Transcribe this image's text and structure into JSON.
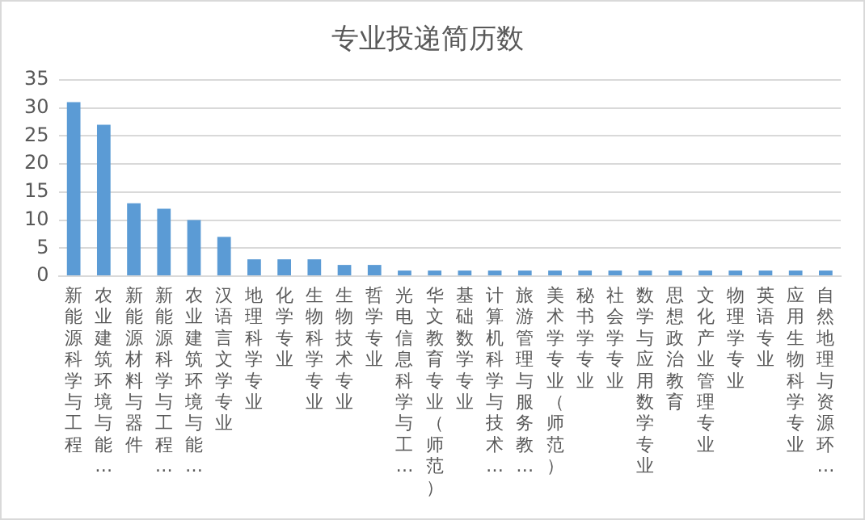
{
  "chart_data": {
    "type": "bar",
    "title": "专业投递简历数",
    "categories": [
      "新能源科学与工程",
      "农业建筑环境与能…",
      "新能源材料与器件",
      "新能源科学与工程…",
      "农业建筑环境与能…",
      "汉语言文学专业",
      "地理科学专业",
      "化学专业",
      "生物科学专业",
      "生物技术专业",
      "哲学专业",
      "光电信息科学与工…",
      "华文教育专业（师范）",
      "基础数学专业",
      "计算机科学与技术…",
      "旅游管理与服务教…",
      "美术学专业（师范）",
      "秘书学专业",
      "社会学专业",
      "数学与应用数学专业",
      "思想政治教育",
      "文化产业管理专业",
      "物理学专业",
      "英语专业",
      "应用生物科学专业",
      "自然地理与资源环…"
    ],
    "values": [
      31,
      27,
      13,
      12,
      10,
      7,
      3,
      3,
      3,
      2,
      2,
      1,
      1,
      1,
      1,
      1,
      1,
      1,
      1,
      1,
      1,
      1,
      1,
      1,
      1,
      1
    ],
    "color": "#5b9bd5",
    "ylim": [
      0,
      35
    ],
    "yticks": [
      0,
      5,
      10,
      15,
      20,
      25,
      30,
      35
    ],
    "grid": "y",
    "legend": false
  }
}
